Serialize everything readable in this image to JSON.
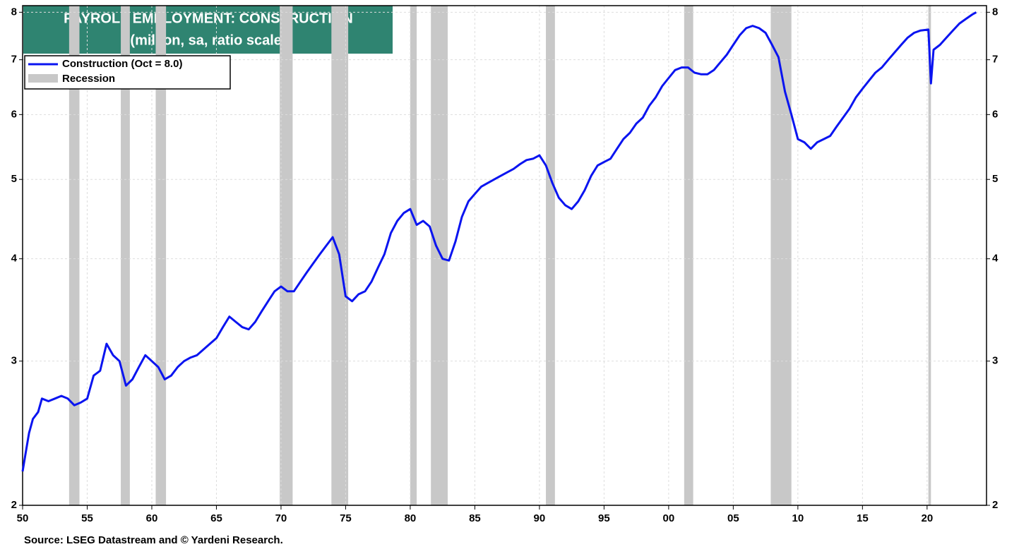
{
  "chart_data": {
    "type": "line",
    "title": "PAYROLL EMPLOYMENT: CONSTRUCTION",
    "subtitle": "(million, sa, ratio scale)",
    "source": "Source: LSEG Datastream and © Yardeni Research.",
    "log_y": true,
    "grid": true,
    "legend": "top-left",
    "x": [
      1950.0,
      1950.2,
      1950.5,
      1950.8,
      1951.2,
      1951.5,
      1952,
      1952.5,
      1953,
      1953.5,
      1954,
      1954.5,
      1955,
      1955.5,
      1956,
      1956.5,
      1957,
      1957.5,
      1958,
      1958.5,
      1959,
      1959.5,
      1960,
      1960.5,
      1961,
      1961.5,
      1962,
      1962.5,
      1963,
      1963.5,
      1964,
      1964.5,
      1965,
      1965.5,
      1966,
      1966.5,
      1967,
      1967.5,
      1968,
      1968.5,
      1969,
      1969.5,
      1970,
      1970.5,
      1971,
      1971.5,
      1972,
      1972.5,
      1973,
      1973.5,
      1974,
      1974.5,
      1975,
      1975.5,
      1976,
      1976.5,
      1977,
      1977.5,
      1978,
      1978.5,
      1979,
      1979.5,
      1980,
      1980.5,
      1981,
      1981.5,
      1982,
      1982.5,
      1983,
      1983.5,
      1984,
      1984.5,
      1985,
      1985.5,
      1986,
      1986.5,
      1987,
      1987.5,
      1988,
      1988.5,
      1989,
      1989.5,
      1990,
      1990.5,
      1991,
      1991.5,
      1992,
      1992.5,
      1993,
      1993.5,
      1994,
      1994.5,
      1995,
      1995.5,
      1996,
      1996.5,
      1997,
      1997.5,
      1998,
      1998.5,
      1999,
      1999.5,
      2000,
      2000.5,
      2001,
      2001.5,
      2002,
      2002.5,
      2003,
      2003.5,
      2004,
      2004.5,
      2005,
      2005.5,
      2006,
      2006.5,
      2007,
      2007.5,
      2008,
      2008.5,
      2009,
      2009.5,
      2010,
      2010.5,
      2011,
      2011.5,
      2012,
      2012.5,
      2013,
      2013.5,
      2014,
      2014.5,
      2015,
      2015.5,
      2016,
      2016.5,
      2017,
      2017.5,
      2018,
      2018.5,
      2019,
      2019.5,
      2020.1,
      2020.3,
      2020.5,
      2021,
      2021.5,
      2022,
      2022.5,
      2023,
      2023.5,
      2023.8
    ],
    "series": [
      {
        "name": "Construction (Oct = 8.0)",
        "color": "#0a14f0",
        "values": [
          2.2,
          2.3,
          2.45,
          2.55,
          2.6,
          2.7,
          2.68,
          2.7,
          2.72,
          2.7,
          2.65,
          2.67,
          2.7,
          2.88,
          2.92,
          3.15,
          3.05,
          3.0,
          2.8,
          2.85,
          2.95,
          3.05,
          3.0,
          2.95,
          2.85,
          2.88,
          2.95,
          3.0,
          3.03,
          3.05,
          3.1,
          3.15,
          3.2,
          3.3,
          3.4,
          3.35,
          3.3,
          3.28,
          3.35,
          3.45,
          3.55,
          3.65,
          3.7,
          3.65,
          3.65,
          3.75,
          3.85,
          3.95,
          4.05,
          4.15,
          4.25,
          4.05,
          3.6,
          3.55,
          3.62,
          3.65,
          3.75,
          3.9,
          4.05,
          4.3,
          4.45,
          4.55,
          4.6,
          4.4,
          4.45,
          4.38,
          4.15,
          4.0,
          3.98,
          4.2,
          4.5,
          4.7,
          4.8,
          4.9,
          4.95,
          5.0,
          5.05,
          5.1,
          5.15,
          5.22,
          5.28,
          5.3,
          5.35,
          5.2,
          4.95,
          4.75,
          4.65,
          4.6,
          4.7,
          4.85,
          5.05,
          5.2,
          5.25,
          5.3,
          5.45,
          5.6,
          5.7,
          5.85,
          5.95,
          6.15,
          6.3,
          6.5,
          6.65,
          6.8,
          6.85,
          6.85,
          6.75,
          6.72,
          6.72,
          6.8,
          6.95,
          7.1,
          7.3,
          7.5,
          7.65,
          7.7,
          7.65,
          7.55,
          7.3,
          7.05,
          6.4,
          6.0,
          5.6,
          5.55,
          5.45,
          5.55,
          5.6,
          5.65,
          5.8,
          5.95,
          6.1,
          6.3,
          6.45,
          6.6,
          6.75,
          6.85,
          7.0,
          7.15,
          7.3,
          7.45,
          7.55,
          7.6,
          7.62,
          6.55,
          7.2,
          7.3,
          7.45,
          7.6,
          7.75,
          7.85,
          7.95,
          8.0
        ]
      }
    ],
    "recession": {
      "name": "Recession",
      "color": "#c8c8c8",
      "spans": [
        [
          1953.6,
          1954.4
        ],
        [
          1957.6,
          1958.3
        ],
        [
          1960.3,
          1961.1
        ],
        [
          1969.9,
          1970.9
        ],
        [
          1973.9,
          1975.2
        ],
        [
          1980.0,
          1980.5
        ],
        [
          1981.6,
          1982.9
        ],
        [
          1990.5,
          1991.2
        ],
        [
          2001.2,
          2001.9
        ],
        [
          2007.9,
          2009.5
        ],
        [
          2020.1,
          2020.3
        ]
      ]
    },
    "xlim": [
      1950,
      2024.6
    ],
    "xticks": [
      {
        "value": 1950,
        "label": "50"
      },
      {
        "value": 1955,
        "label": "55"
      },
      {
        "value": 1960,
        "label": "60"
      },
      {
        "value": 1965,
        "label": "65"
      },
      {
        "value": 1970,
        "label": "70"
      },
      {
        "value": 1975,
        "label": "75"
      },
      {
        "value": 1980,
        "label": "80"
      },
      {
        "value": 1985,
        "label": "85"
      },
      {
        "value": 1990,
        "label": "90"
      },
      {
        "value": 1995,
        "label": "95"
      },
      {
        "value": 2000,
        "label": "00"
      },
      {
        "value": 2005,
        "label": "05"
      },
      {
        "value": 2010,
        "label": "10"
      },
      {
        "value": 2015,
        "label": "15"
      },
      {
        "value": 2020,
        "label": "20"
      }
    ],
    "ylim": [
      2,
      8.15
    ],
    "yticks": [
      2,
      3,
      4,
      5,
      6,
      7,
      8
    ]
  }
}
